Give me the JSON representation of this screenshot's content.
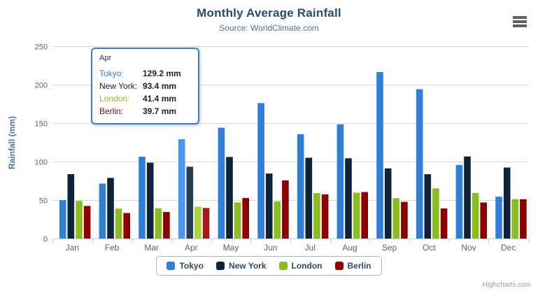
{
  "header": {
    "title": "Monthly Average Rainfall",
    "subtitle": "Source: WorldClimate.com"
  },
  "chart_data": {
    "type": "bar",
    "title": "Monthly Average Rainfall",
    "subtitle": "Source: WorldClimate.com",
    "categories": [
      "Jan",
      "Feb",
      "Mar",
      "Apr",
      "May",
      "Jun",
      "Jul",
      "Aug",
      "Sep",
      "Oct",
      "Nov",
      "Dec"
    ],
    "series": [
      {
        "name": "Tokyo",
        "color": "#2f7ed8",
        "hover_color": "#4897f1",
        "values": [
          49.9,
          71.5,
          106.4,
          129.2,
          144.0,
          176.0,
          135.6,
          148.5,
          216.4,
          194.1,
          95.6,
          54.4
        ]
      },
      {
        "name": "New York",
        "color": "#0d233a",
        "hover_color": "#263c53",
        "values": [
          83.6,
          78.8,
          98.5,
          93.4,
          106.0,
          84.5,
          105.0,
          104.3,
          91.2,
          83.5,
          106.6,
          92.3
        ]
      },
      {
        "name": "London",
        "color": "#8bbc21",
        "hover_color": "#a4d53a",
        "values": [
          48.9,
          38.8,
          39.3,
          41.4,
          47.0,
          48.3,
          59.0,
          59.6,
          52.4,
          65.2,
          59.3,
          51.2
        ]
      },
      {
        "name": "Berlin",
        "color": "#910000",
        "hover_color": "#aa1919",
        "values": [
          42.4,
          33.2,
          34.5,
          39.7,
          52.6,
          75.5,
          57.4,
          60.4,
          47.6,
          39.1,
          46.8,
          51.1
        ]
      }
    ],
    "xlabel": "",
    "ylabel": "Rainfall (mm)",
    "ylim": [
      0,
      250
    ],
    "y_ticks": [
      0,
      50,
      100,
      150,
      200,
      250
    ],
    "grid": true,
    "legend_position": "bottom",
    "highlighted_category": "Apr"
  },
  "tooltip": {
    "header": "Apr",
    "value_suffix": "mm",
    "rows": [
      {
        "label": "Tokyo:",
        "value": "129.2 mm",
        "color": "#2f7ed8"
      },
      {
        "label": "New York:",
        "value": "93.4 mm",
        "color": "#0d233a"
      },
      {
        "label": "London:",
        "value": "41.4 mm",
        "color": "#8bbc21"
      },
      {
        "label": "Berlin:",
        "value": "39.7 mm",
        "color": "#910000"
      }
    ]
  },
  "legend": {
    "items": [
      {
        "label": "Tokyo",
        "color": "#2f7ed8"
      },
      {
        "label": "New York",
        "color": "#0d233a"
      },
      {
        "label": "London",
        "color": "#8bbc21"
      },
      {
        "label": "Berlin",
        "color": "#910000"
      }
    ]
  },
  "credits": {
    "label": "Highcharts.com"
  },
  "style": {
    "grid_color": "#d8d8d8",
    "axis_line_color": "#c0d0e0",
    "tick_color": "#c0d0e0",
    "axis_label_color": "#606060",
    "title_color": "#274b6d",
    "subtitle_color": "#4d759e"
  }
}
